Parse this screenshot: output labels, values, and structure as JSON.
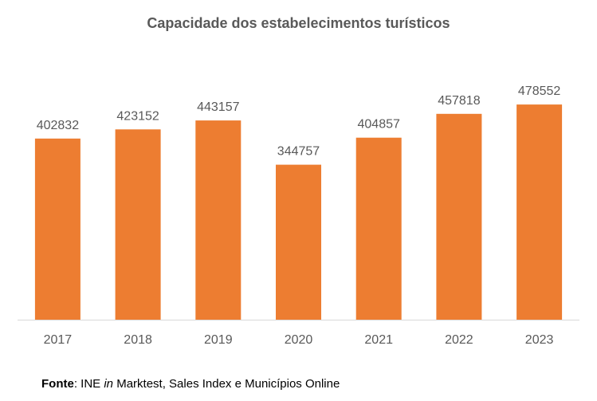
{
  "chart_data": {
    "type": "bar",
    "title": "Capacidade dos estabelecimentos turísticos",
    "categories": [
      "2017",
      "2018",
      "2019",
      "2020",
      "2021",
      "2022",
      "2023"
    ],
    "values": [
      402832,
      423152,
      443157,
      344757,
      404857,
      457818,
      478552
    ],
    "data_labels": [
      "402832",
      "423152",
      "443157",
      "344757",
      "404857",
      "457818",
      "478552"
    ],
    "xlabel": "",
    "ylabel": "",
    "ylim": [
      0,
      500000
    ],
    "grid": false,
    "legend": "none",
    "bar_color": "#ED7D31",
    "label_color": "#595959",
    "axis_color": "#D9D9D9"
  },
  "source": {
    "label": "Fonte",
    "separator": ": INE ",
    "italic_word": "in",
    "text": " Marktest, Sales Index e Municípios Online"
  }
}
